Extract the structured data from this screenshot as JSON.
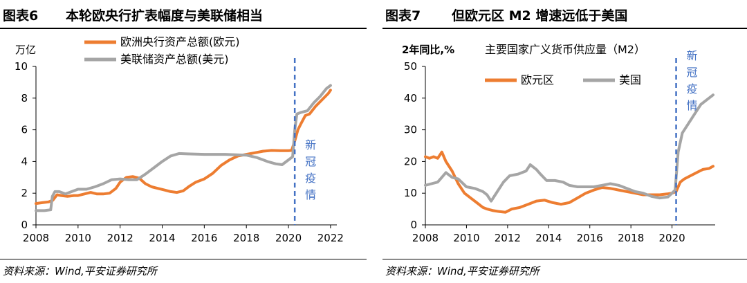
{
  "charts": [
    {
      "fig_label": "图表6",
      "title": "本轮欧央行扩表幅度与美联储相当",
      "source": "资料来源：Wind,平安证券研究所",
      "chart_data": {
        "type": "line",
        "ylabel": "万亿",
        "subtitle": "",
        "xlim": [
          2008,
          2022.3
        ],
        "ylim": [
          0,
          10
        ],
        "xticks": [
          2008,
          2010,
          2012,
          2014,
          2016,
          2018,
          2020,
          2022
        ],
        "yticks": [
          0,
          2,
          4,
          6,
          8,
          10
        ],
        "grid": false,
        "legend_position": "top-center",
        "annotation": {
          "x": 2020.3,
          "text": [
            "新",
            "冠",
            "疫",
            "情"
          ]
        },
        "series": [
          {
            "name": "欧洲央行资产总额(欧元)",
            "color": "#ED7D31",
            "x": [
              2008.0,
              2008.3,
              2008.6,
              2008.8,
              2009.0,
              2009.2,
              2009.5,
              2009.8,
              2010.0,
              2010.3,
              2010.6,
              2010.9,
              2011.2,
              2011.5,
              2011.8,
              2012.0,
              2012.3,
              2012.6,
              2012.9,
              2013.2,
              2013.5,
              2013.8,
              2014.1,
              2014.4,
              2014.7,
              2015.0,
              2015.3,
              2015.6,
              2016.0,
              2016.4,
              2016.8,
              2017.2,
              2017.6,
              2018.0,
              2018.4,
              2018.8,
              2019.2,
              2019.6,
              2020.0,
              2020.15,
              2020.3,
              2020.45,
              2020.6,
              2020.8,
              2021.0,
              2021.3,
              2021.6,
              2021.9,
              2022.0
            ],
            "values": [
              1.35,
              1.4,
              1.45,
              1.55,
              1.9,
              1.85,
              1.8,
              1.85,
              1.85,
              1.95,
              2.05,
              1.95,
              1.95,
              2.0,
              2.3,
              2.7,
              3.0,
              3.05,
              2.95,
              2.6,
              2.4,
              2.3,
              2.2,
              2.1,
              2.05,
              2.15,
              2.45,
              2.7,
              2.9,
              3.25,
              3.75,
              4.1,
              4.35,
              4.45,
              4.55,
              4.65,
              4.7,
              4.68,
              4.68,
              4.7,
              5.3,
              6.0,
              6.4,
              6.9,
              7.0,
              7.5,
              7.9,
              8.3,
              8.5
            ]
          },
          {
            "name": "美联储资产总额(美元)",
            "color": "#A5A5A5",
            "x": [
              2008.0,
              2008.4,
              2008.7,
              2008.78,
              2008.9,
              2009.1,
              2009.4,
              2009.7,
              2010.0,
              2010.4,
              2010.8,
              2011.2,
              2011.6,
              2012.0,
              2012.4,
              2012.8,
              2013.2,
              2013.6,
              2014.0,
              2014.4,
              2014.8,
              2015.2,
              2016.0,
              2017.0,
              2018.0,
              2018.5,
              2019.0,
              2019.4,
              2019.7,
              2020.0,
              2020.2,
              2020.3,
              2020.4,
              2020.6,
              2020.9,
              2021.2,
              2021.5,
              2021.8,
              2022.0
            ],
            "values": [
              0.9,
              0.9,
              0.95,
              1.8,
              2.1,
              2.1,
              1.95,
              2.1,
              2.25,
              2.25,
              2.4,
              2.6,
              2.85,
              2.9,
              2.85,
              2.85,
              3.2,
              3.6,
              4.0,
              4.35,
              4.5,
              4.48,
              4.45,
              4.45,
              4.4,
              4.25,
              4.0,
              3.85,
              3.8,
              4.1,
              4.3,
              6.0,
              7.0,
              7.1,
              7.2,
              7.7,
              8.1,
              8.6,
              8.8
            ]
          }
        ]
      }
    },
    {
      "fig_label": "图表7",
      "title": "但欧元区 M2 增速远低于美国",
      "source": "资料来源：Wind,平安证券研究所",
      "chart_data": {
        "type": "line",
        "ylabel": "2年同比,%",
        "subtitle": "主要国家广义货币供应量（M2）",
        "xlim": [
          2008,
          2022.1
        ],
        "ylim": [
          0,
          50
        ],
        "xticks": [
          2008,
          2010,
          2012,
          2014,
          2016,
          2018,
          2020
        ],
        "yticks": [
          0,
          10,
          20,
          30,
          40,
          50
        ],
        "grid": false,
        "legend_position": "top-center",
        "annotation": {
          "x": 2020.2,
          "text": [
            "新",
            "冠",
            "疫",
            "情"
          ]
        },
        "series": [
          {
            "name": "欧元区",
            "color": "#ED7D31",
            "x": [
              2008.0,
              2008.2,
              2008.4,
              2008.6,
              2008.8,
              2009.0,
              2009.3,
              2009.6,
              2009.9,
              2010.2,
              2010.5,
              2010.8,
              2011.0,
              2011.3,
              2011.6,
              2011.9,
              2012.2,
              2012.6,
              2013.0,
              2013.4,
              2013.8,
              2014.2,
              2014.6,
              2015.0,
              2015.4,
              2015.8,
              2016.2,
              2016.6,
              2017.0,
              2017.4,
              2017.8,
              2018.2,
              2018.6,
              2019.0,
              2019.4,
              2019.8,
              2020.0,
              2020.2,
              2020.4,
              2020.6,
              2020.9,
              2021.2,
              2021.5,
              2021.8,
              2022.0
            ],
            "values": [
              21.5,
              21.0,
              21.5,
              21.0,
              23.0,
              20.0,
              17.0,
              13.0,
              10.0,
              8.5,
              7.0,
              5.5,
              5.0,
              4.5,
              4.2,
              4.0,
              5.0,
              5.5,
              6.5,
              7.5,
              7.8,
              7.0,
              6.5,
              7.0,
              8.5,
              10.0,
              11.0,
              11.8,
              11.5,
              11.0,
              10.5,
              10.0,
              9.5,
              9.5,
              9.5,
              9.8,
              10.0,
              10.5,
              13.5,
              14.5,
              15.5,
              16.5,
              17.5,
              17.8,
              18.5
            ]
          },
          {
            "name": "美国",
            "color": "#A5A5A5",
            "x": [
              2008.0,
              2008.3,
              2008.6,
              2008.8,
              2009.0,
              2009.3,
              2009.6,
              2010.0,
              2010.4,
              2010.8,
              2011.0,
              2011.2,
              2011.5,
              2011.8,
              2012.1,
              2012.5,
              2012.9,
              2013.1,
              2013.4,
              2013.6,
              2013.9,
              2014.3,
              2014.7,
              2015.0,
              2015.4,
              2015.8,
              2016.2,
              2016.6,
              2017.0,
              2017.4,
              2017.8,
              2018.2,
              2018.6,
              2019.0,
              2019.4,
              2019.8,
              2020.0,
              2020.15,
              2020.3,
              2020.5,
              2020.8,
              2021.1,
              2021.4,
              2021.7,
              2022.0
            ],
            "values": [
              12.5,
              13.0,
              13.5,
              15.0,
              16.5,
              15.0,
              14.5,
              12.0,
              11.5,
              10.5,
              9.5,
              7.5,
              10.5,
              13.5,
              15.5,
              16.0,
              17.0,
              19.0,
              17.5,
              16.0,
              14.0,
              14.0,
              13.5,
              12.5,
              12.0,
              12.0,
              12.0,
              12.5,
              13.0,
              12.5,
              11.5,
              10.5,
              10.0,
              9.0,
              8.5,
              8.8,
              10.0,
              11.0,
              23.0,
              29.0,
              32.0,
              35.0,
              38.0,
              39.5,
              41.0
            ]
          }
        ]
      }
    }
  ]
}
